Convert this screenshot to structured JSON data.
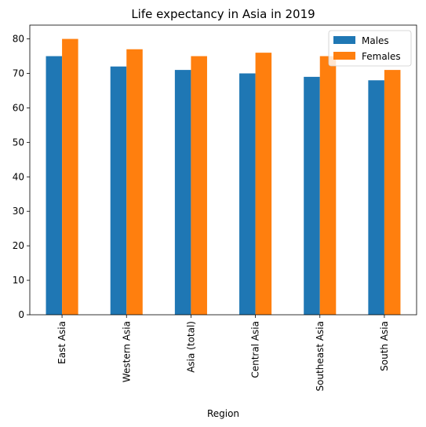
{
  "chart_data": {
    "type": "bar",
    "title": "Life expectancy in Asia in 2019",
    "xlabel": "Region",
    "ylabel": "",
    "categories": [
      "East Asia",
      "Western Asia",
      "Asia (total)",
      "Central Asia",
      "Southeast Asia",
      "South Asia"
    ],
    "series": [
      {
        "name": "Males",
        "color": "#1f77b4",
        "values": [
          75,
          72,
          71,
          70,
          69,
          68
        ]
      },
      {
        "name": "Females",
        "color": "#ff7f0e",
        "values": [
          80,
          77,
          75,
          76,
          75,
          71
        ]
      }
    ],
    "ylim": [
      0,
      84
    ],
    "yticks": [
      0,
      10,
      20,
      30,
      40,
      50,
      60,
      70,
      80
    ],
    "grid": false,
    "legend": "top-right"
  }
}
